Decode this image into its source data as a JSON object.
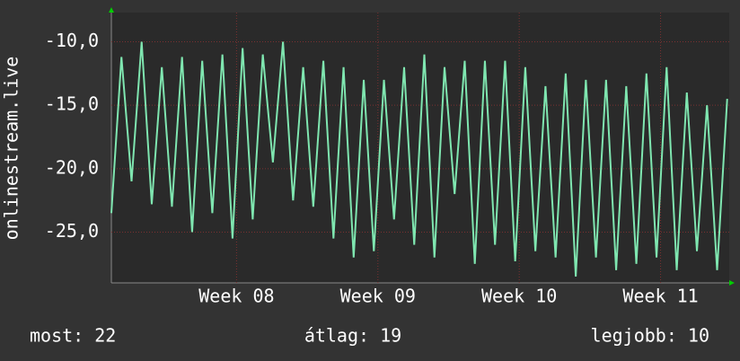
{
  "chart_data": {
    "type": "line",
    "y_label": "onlinestream.live",
    "x": [
      0,
      0.5,
      1,
      1.5,
      2,
      2.5,
      3,
      3.5,
      4,
      4.5,
      5,
      5.5,
      6,
      6.5,
      7,
      7.5,
      8,
      8.5,
      9,
      9.5,
      10,
      10.5,
      11,
      11.5,
      12,
      12.5,
      13,
      13.5,
      14,
      14.5,
      15,
      15.5,
      16,
      16.5,
      17,
      17.5,
      18,
      18.5,
      19,
      19.5,
      20,
      20.5,
      21,
      21.5,
      22,
      22.5,
      23,
      23.5,
      24,
      24.5,
      25,
      25.5,
      26,
      26.5,
      27,
      27.5,
      28,
      28.5,
      29,
      29.5,
      30,
      30.5
    ],
    "values": [
      -23.5,
      -11.2,
      -21,
      -10,
      -22.8,
      -12,
      -23,
      -11.2,
      -25,
      -11.5,
      -23.5,
      -11,
      -25.5,
      -10.5,
      -24,
      -11,
      -19.5,
      -10,
      -22.5,
      -12,
      -23,
      -11.5,
      -25.5,
      -12,
      -27,
      -13,
      -26.5,
      -13,
      -24,
      -12,
      -26,
      -11,
      -27,
      -12,
      -22,
      -11.5,
      -27.5,
      -11.5,
      -26,
      -11.5,
      -27.3,
      -12,
      -26.5,
      -13.5,
      -27,
      -12.5,
      -28.5,
      -13,
      -27,
      -13,
      -28,
      -13.5,
      -27.5,
      -12.5,
      -27,
      -12,
      -28,
      -14,
      -26.5,
      -15,
      -28,
      -14.5
    ],
    "color": "#7fe6b0",
    "xlim": [
      0,
      30.6
    ],
    "xticks": [
      {
        "value": 6.2,
        "label": "Week 08"
      },
      {
        "value": 13.2,
        "label": "Week 09"
      },
      {
        "value": 20.2,
        "label": "Week 10"
      },
      {
        "value": 27.2,
        "label": "Week 11"
      }
    ],
    "ylim": [
      -29,
      -7.7
    ],
    "yticks": [
      {
        "value": -10,
        "label": "-10,0"
      },
      {
        "value": -15,
        "label": "-15,0"
      },
      {
        "value": -20,
        "label": "-20,0"
      },
      {
        "value": -25,
        "label": "-25,0"
      }
    ],
    "grid": true,
    "footer": [
      "most: 22",
      "átlag: 19",
      "legjobb: 10"
    ]
  }
}
